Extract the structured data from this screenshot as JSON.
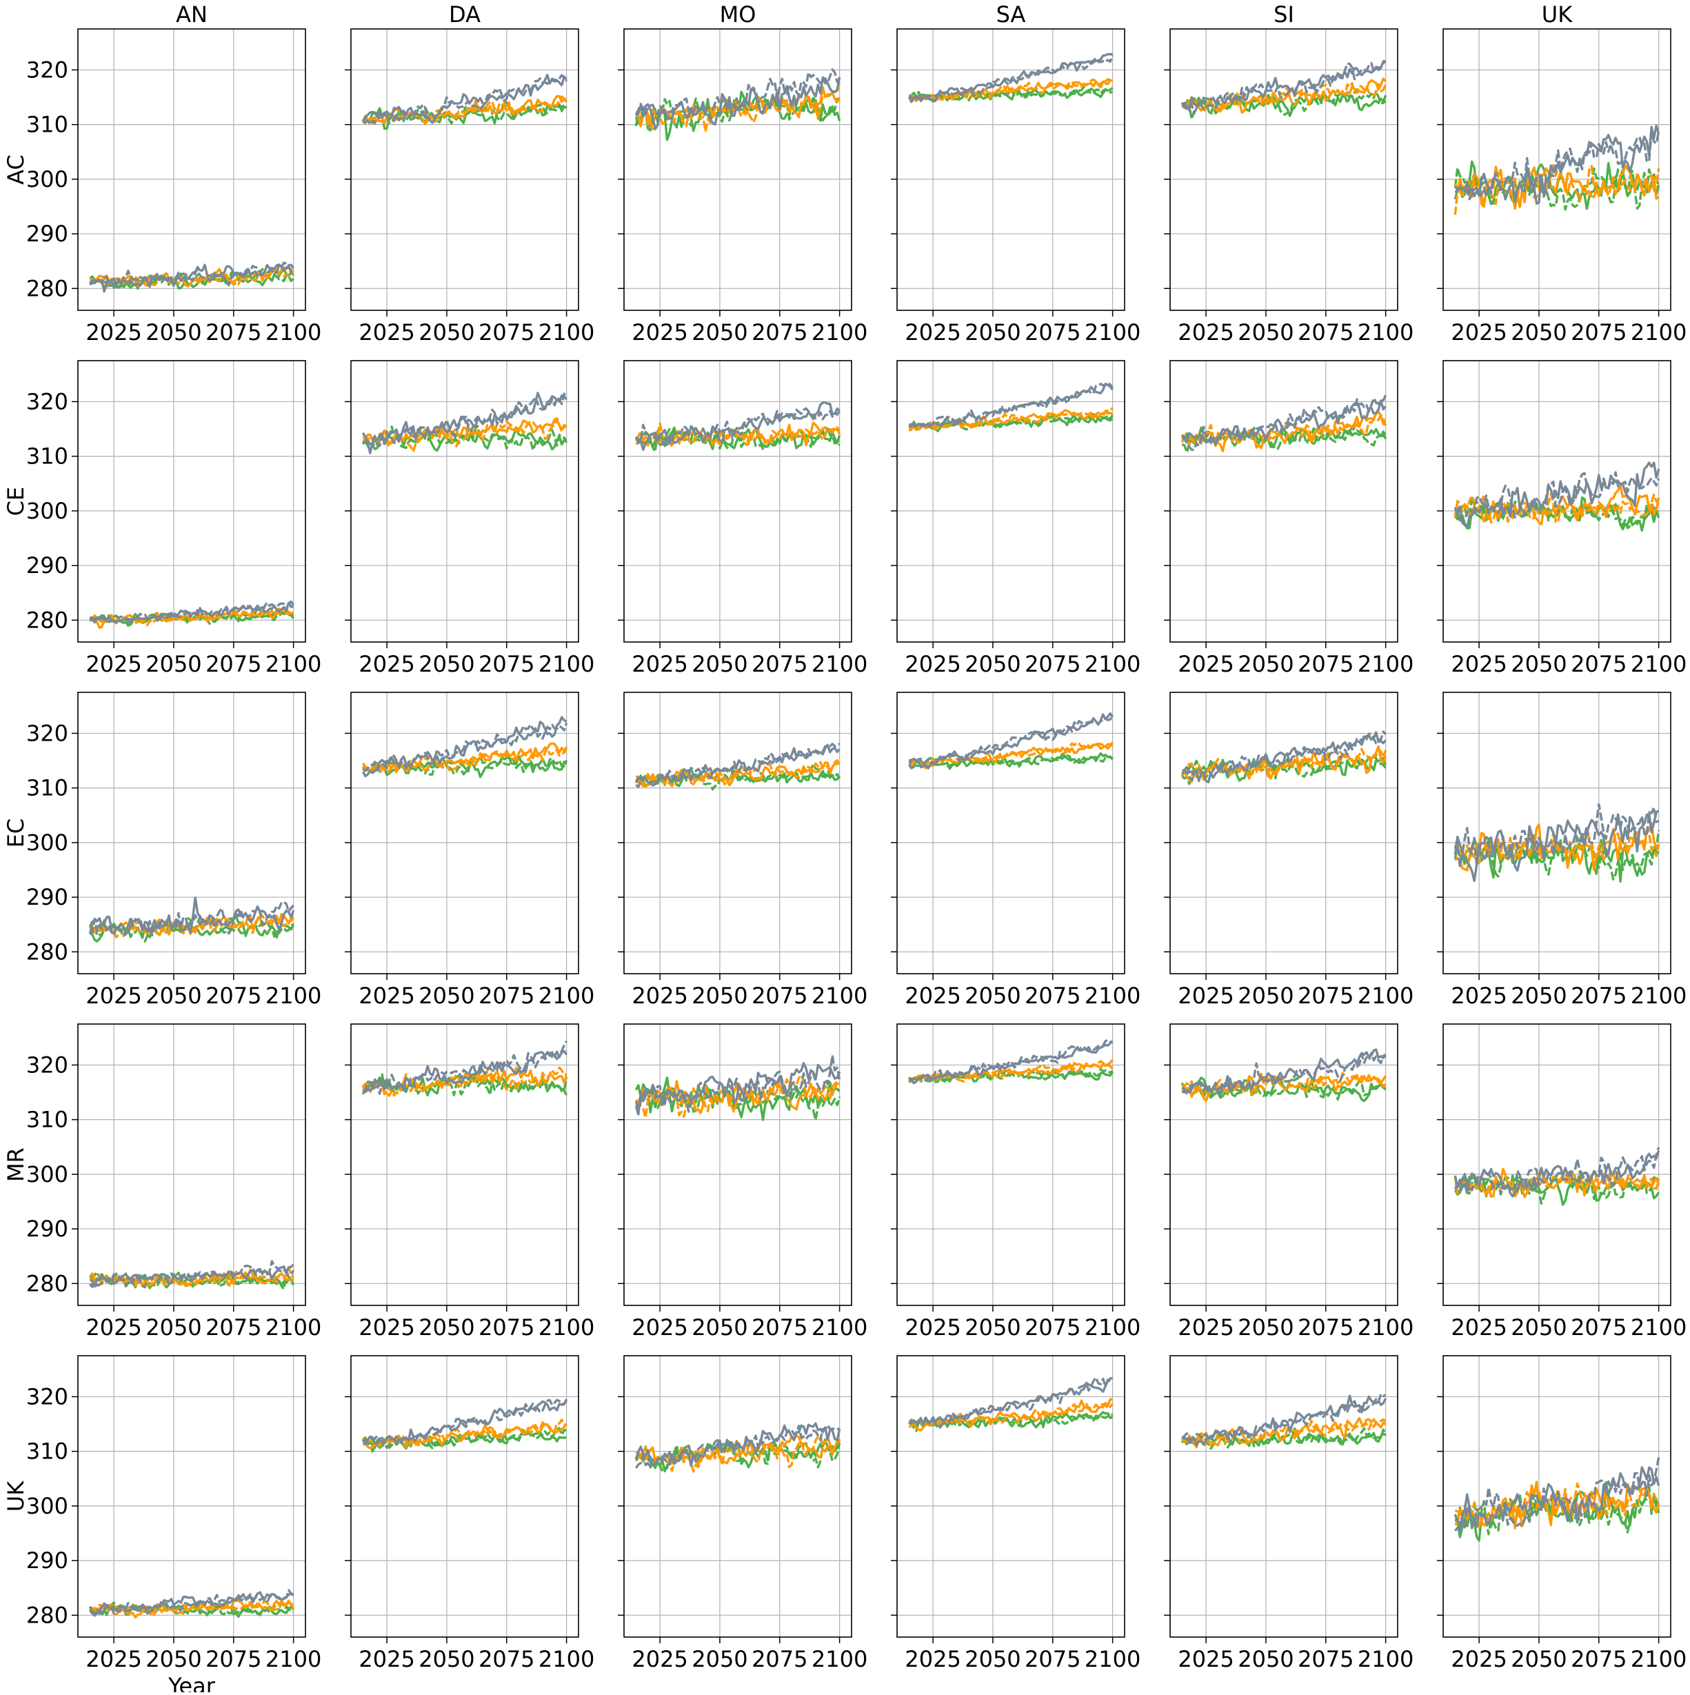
{
  "chart_data": {
    "type": "line",
    "layout": "small-multiples grid",
    "column_titles": [
      "AN",
      "DA",
      "MO",
      "SA",
      "SI",
      "UK"
    ],
    "row_titles": [
      "AC",
      "CE",
      "EC",
      "MR",
      "UK"
    ],
    "xlabel": "Year",
    "ylabel": "",
    "x_ticks": [
      2025,
      2050,
      2075,
      2100
    ],
    "y_ticks": [
      280,
      290,
      300,
      310,
      320
    ],
    "xlim": [
      2010,
      2105
    ],
    "ylim": [
      276,
      327.5
    ],
    "shared_y": true,
    "grid": true,
    "legend": "none",
    "x_start": 2015,
    "x_end": 2100,
    "series_colors": [
      "#4daf4a",
      "#ff9900",
      "#778899"
    ],
    "series_note": "three scenario groups per panel (green, orange, grey); each drawn as two noisy annual lines (solid and dashed); values are approximate trends read from the figure",
    "panels": [
      {
        "row": "AC",
        "col": "AN",
        "series": [
          {
            "start": 281.0,
            "end": 282.3,
            "noise": 0.7
          },
          {
            "start": 281.2,
            "end": 282.8,
            "noise": 0.7
          },
          {
            "start": 281.0,
            "end": 284.0,
            "noise": 0.7
          }
        ]
      },
      {
        "row": "AC",
        "col": "DA",
        "series": [
          {
            "start": 311.0,
            "end": 313.0,
            "noise": 0.8
          },
          {
            "start": 311.0,
            "end": 314.0,
            "noise": 0.8
          },
          {
            "start": 311.0,
            "end": 318.5,
            "noise": 0.8
          }
        ]
      },
      {
        "row": "AC",
        "col": "MO",
        "series": [
          {
            "start": 311.5,
            "end": 313.0,
            "noise": 1.5
          },
          {
            "start": 311.5,
            "end": 315.0,
            "noise": 1.5
          },
          {
            "start": 311.5,
            "end": 318.0,
            "noise": 1.5
          }
        ]
      },
      {
        "row": "AC",
        "col": "SA",
        "series": [
          {
            "start": 315.0,
            "end": 316.0,
            "noise": 0.5
          },
          {
            "start": 315.0,
            "end": 318.0,
            "noise": 0.5
          },
          {
            "start": 315.0,
            "end": 322.5,
            "noise": 0.5
          }
        ]
      },
      {
        "row": "AC",
        "col": "SI",
        "series": [
          {
            "start": 313.5,
            "end": 315.0,
            "noise": 0.9
          },
          {
            "start": 313.5,
            "end": 317.0,
            "noise": 0.9
          },
          {
            "start": 313.5,
            "end": 321.0,
            "noise": 0.9
          }
        ]
      },
      {
        "row": "AC",
        "col": "UK",
        "series": [
          {
            "start": 298.0,
            "end": 298.5,
            "noise": 2.0
          },
          {
            "start": 298.0,
            "end": 300.5,
            "noise": 2.0
          },
          {
            "start": 297.5,
            "end": 306.5,
            "noise": 2.0
          }
        ]
      },
      {
        "row": "CE",
        "col": "AN",
        "series": [
          {
            "start": 280.0,
            "end": 281.0,
            "noise": 0.5
          },
          {
            "start": 280.0,
            "end": 281.5,
            "noise": 0.5
          },
          {
            "start": 280.0,
            "end": 283.0,
            "noise": 0.5
          }
        ]
      },
      {
        "row": "CE",
        "col": "DA",
        "series": [
          {
            "start": 313.0,
            "end": 313.5,
            "noise": 1.0
          },
          {
            "start": 313.0,
            "end": 316.0,
            "noise": 1.0
          },
          {
            "start": 313.0,
            "end": 320.5,
            "noise": 1.0
          }
        ]
      },
      {
        "row": "CE",
        "col": "MO",
        "series": [
          {
            "start": 313.0,
            "end": 313.0,
            "noise": 1.0
          },
          {
            "start": 313.0,
            "end": 314.5,
            "noise": 1.0
          },
          {
            "start": 313.0,
            "end": 318.5,
            "noise": 1.0
          }
        ]
      },
      {
        "row": "CE",
        "col": "SA",
        "series": [
          {
            "start": 315.5,
            "end": 317.0,
            "noise": 0.5
          },
          {
            "start": 315.5,
            "end": 318.5,
            "noise": 0.5
          },
          {
            "start": 315.5,
            "end": 323.0,
            "noise": 0.5
          }
        ]
      },
      {
        "row": "CE",
        "col": "SI",
        "series": [
          {
            "start": 313.0,
            "end": 314.0,
            "noise": 1.0
          },
          {
            "start": 313.0,
            "end": 316.0,
            "noise": 1.0
          },
          {
            "start": 313.0,
            "end": 320.0,
            "noise": 1.0
          }
        ]
      },
      {
        "row": "CE",
        "col": "UK",
        "series": [
          {
            "start": 300.0,
            "end": 298.5,
            "noise": 1.5
          },
          {
            "start": 300.0,
            "end": 301.5,
            "noise": 1.5
          },
          {
            "start": 300.0,
            "end": 306.0,
            "noise": 1.5
          }
        ]
      },
      {
        "row": "EC",
        "col": "AN",
        "series": [
          {
            "start": 284.0,
            "end": 284.5,
            "noise": 0.9
          },
          {
            "start": 284.0,
            "end": 285.5,
            "noise": 0.9
          },
          {
            "start": 284.0,
            "end": 288.0,
            "noise": 1.2
          }
        ]
      },
      {
        "row": "EC",
        "col": "DA",
        "series": [
          {
            "start": 313.5,
            "end": 314.5,
            "noise": 0.8
          },
          {
            "start": 313.5,
            "end": 317.0,
            "noise": 0.8
          },
          {
            "start": 313.5,
            "end": 322.0,
            "noise": 0.8
          }
        ]
      },
      {
        "row": "EC",
        "col": "MO",
        "series": [
          {
            "start": 311.5,
            "end": 312.5,
            "noise": 0.8
          },
          {
            "start": 311.5,
            "end": 314.0,
            "noise": 0.8
          },
          {
            "start": 311.5,
            "end": 317.5,
            "noise": 0.8
          }
        ]
      },
      {
        "row": "EC",
        "col": "SA",
        "series": [
          {
            "start": 314.5,
            "end": 315.5,
            "noise": 0.5
          },
          {
            "start": 314.5,
            "end": 318.0,
            "noise": 0.5
          },
          {
            "start": 314.5,
            "end": 323.0,
            "noise": 0.6
          }
        ]
      },
      {
        "row": "EC",
        "col": "SI",
        "series": [
          {
            "start": 313.0,
            "end": 314.0,
            "noise": 1.0
          },
          {
            "start": 313.0,
            "end": 316.0,
            "noise": 1.0
          },
          {
            "start": 313.0,
            "end": 319.5,
            "noise": 1.0
          }
        ]
      },
      {
        "row": "EC",
        "col": "UK",
        "series": [
          {
            "start": 298.0,
            "end": 297.5,
            "noise": 2.0
          },
          {
            "start": 298.0,
            "end": 300.5,
            "noise": 2.0
          },
          {
            "start": 298.0,
            "end": 304.5,
            "noise": 2.0
          }
        ]
      },
      {
        "row": "MR",
        "col": "AN",
        "series": [
          {
            "start": 280.5,
            "end": 280.5,
            "noise": 0.7
          },
          {
            "start": 280.5,
            "end": 281.0,
            "noise": 0.7
          },
          {
            "start": 280.5,
            "end": 282.5,
            "noise": 0.7
          }
        ]
      },
      {
        "row": "MR",
        "col": "DA",
        "series": [
          {
            "start": 316.0,
            "end": 316.5,
            "noise": 1.0
          },
          {
            "start": 316.0,
            "end": 318.5,
            "noise": 1.0
          },
          {
            "start": 316.0,
            "end": 322.5,
            "noise": 1.0
          }
        ]
      },
      {
        "row": "MR",
        "col": "MO",
        "series": [
          {
            "start": 314.0,
            "end": 313.5,
            "noise": 1.5
          },
          {
            "start": 314.0,
            "end": 315.0,
            "noise": 1.5
          },
          {
            "start": 314.0,
            "end": 319.0,
            "noise": 1.5
          }
        ]
      },
      {
        "row": "MR",
        "col": "SA",
        "series": [
          {
            "start": 317.5,
            "end": 318.5,
            "noise": 0.5
          },
          {
            "start": 317.5,
            "end": 320.0,
            "noise": 0.5
          },
          {
            "start": 317.5,
            "end": 324.0,
            "noise": 0.5
          }
        ]
      },
      {
        "row": "MR",
        "col": "SI",
        "series": [
          {
            "start": 315.5,
            "end": 315.5,
            "noise": 0.9
          },
          {
            "start": 315.5,
            "end": 317.5,
            "noise": 0.9
          },
          {
            "start": 315.5,
            "end": 321.5,
            "noise": 0.9
          }
        ]
      },
      {
        "row": "MR",
        "col": "UK",
        "series": [
          {
            "start": 298.0,
            "end": 297.5,
            "noise": 1.3
          },
          {
            "start": 298.0,
            "end": 298.5,
            "noise": 1.3
          },
          {
            "start": 298.0,
            "end": 302.0,
            "noise": 1.3
          }
        ]
      },
      {
        "row": "UK",
        "col": "AN",
        "series": [
          {
            "start": 281.0,
            "end": 281.0,
            "noise": 0.6
          },
          {
            "start": 281.0,
            "end": 282.0,
            "noise": 0.6
          },
          {
            "start": 281.0,
            "end": 284.0,
            "noise": 0.6
          }
        ]
      },
      {
        "row": "UK",
        "col": "DA",
        "series": [
          {
            "start": 311.5,
            "end": 313.0,
            "noise": 0.7
          },
          {
            "start": 311.5,
            "end": 315.0,
            "noise": 0.7
          },
          {
            "start": 311.5,
            "end": 319.5,
            "noise": 0.7
          }
        ]
      },
      {
        "row": "UK",
        "col": "MO",
        "series": [
          {
            "start": 308.5,
            "end": 310.0,
            "noise": 1.2
          },
          {
            "start": 308.5,
            "end": 311.5,
            "noise": 1.2
          },
          {
            "start": 308.5,
            "end": 315.0,
            "noise": 1.2
          }
        ]
      },
      {
        "row": "UK",
        "col": "SA",
        "series": [
          {
            "start": 315.0,
            "end": 316.5,
            "noise": 0.6
          },
          {
            "start": 315.0,
            "end": 318.5,
            "noise": 0.6
          },
          {
            "start": 315.0,
            "end": 323.0,
            "noise": 0.6
          }
        ]
      },
      {
        "row": "UK",
        "col": "SI",
        "series": [
          {
            "start": 312.0,
            "end": 312.5,
            "noise": 0.8
          },
          {
            "start": 312.0,
            "end": 315.0,
            "noise": 0.8
          },
          {
            "start": 312.0,
            "end": 319.5,
            "noise": 0.8
          }
        ]
      },
      {
        "row": "UK",
        "col": "UK",
        "series": [
          {
            "start": 298.0,
            "end": 299.5,
            "noise": 2.0
          },
          {
            "start": 298.5,
            "end": 302.5,
            "noise": 2.0
          },
          {
            "start": 298.0,
            "end": 305.5,
            "noise": 2.0
          }
        ]
      }
    ]
  }
}
